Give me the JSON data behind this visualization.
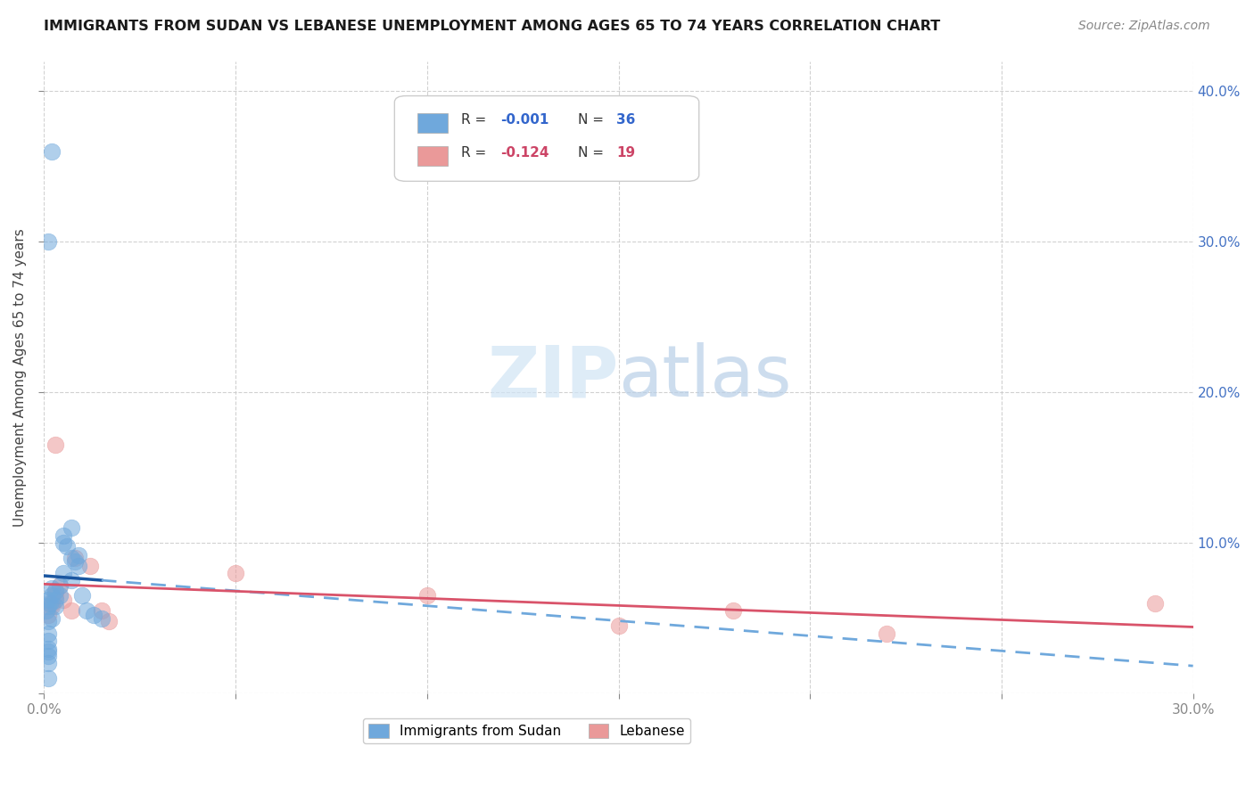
{
  "title": "IMMIGRANTS FROM SUDAN VS LEBANESE UNEMPLOYMENT AMONG AGES 65 TO 74 YEARS CORRELATION CHART",
  "source": "Source: ZipAtlas.com",
  "ylabel": "Unemployment Among Ages 65 to 74 years",
  "xlim": [
    0.0,
    0.3
  ],
  "ylim": [
    0.0,
    0.42
  ],
  "legend_r1": "-0.001",
  "legend_n1": "36",
  "legend_r2": "-0.124",
  "legend_n2": "19",
  "color_blue": "#6fa8dc",
  "color_pink": "#ea9999",
  "color_blue_line": "#1a56a0",
  "color_pink_line": "#d9536a",
  "color_blue_dashed": "#6fa8dc",
  "watermark_zip": "ZIP",
  "watermark_atlas": "atlas",
  "grid_color": "#cccccc",
  "background_color": "#ffffff",
  "fig_width": 14.06,
  "fig_height": 8.92,
  "sudan_x": [
    0.0005,
    0.001,
    0.001,
    0.001,
    0.0015,
    0.002,
    0.002,
    0.002,
    0.003,
    0.003,
    0.003,
    0.004,
    0.004,
    0.005,
    0.005,
    0.005,
    0.006,
    0.007,
    0.007,
    0.007,
    0.008,
    0.009,
    0.009,
    0.01,
    0.011,
    0.013,
    0.001,
    0.001,
    0.001,
    0.001,
    0.001,
    0.001,
    0.001,
    0.002,
    0.015,
    0.001
  ],
  "sudan_y": [
    0.055,
    0.062,
    0.058,
    0.048,
    0.06,
    0.065,
    0.07,
    0.05,
    0.068,
    0.062,
    0.058,
    0.072,
    0.065,
    0.1,
    0.105,
    0.08,
    0.098,
    0.11,
    0.09,
    0.075,
    0.088,
    0.092,
    0.085,
    0.065,
    0.055,
    0.052,
    0.025,
    0.02,
    0.01,
    0.04,
    0.035,
    0.03,
    0.3,
    0.36,
    0.05,
    0.028
  ],
  "lebanese_x": [
    0.001,
    0.002,
    0.002,
    0.003,
    0.003,
    0.004,
    0.005,
    0.007,
    0.008,
    0.012,
    0.015,
    0.017,
    0.05,
    0.1,
    0.15,
    0.18,
    0.22,
    0.29,
    0.003
  ],
  "lebanese_y": [
    0.052,
    0.06,
    0.058,
    0.065,
    0.068,
    0.072,
    0.062,
    0.055,
    0.09,
    0.085,
    0.055,
    0.048,
    0.08,
    0.065,
    0.045,
    0.055,
    0.04,
    0.06,
    0.165
  ]
}
